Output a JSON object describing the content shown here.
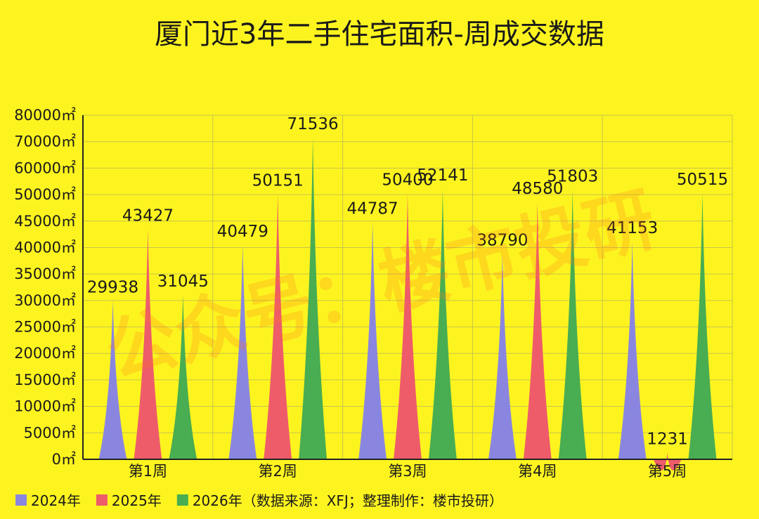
{
  "chart_data": {
    "type": "area",
    "title": "厦门近3年二手住宅面积-周成交数据",
    "unit": "㎡",
    "categories": [
      "第1周",
      "第2周",
      "第3周",
      "第4周",
      "第5周"
    ],
    "series": [
      {
        "name": "2024年",
        "color": "#8a86e0",
        "values": [
          29938,
          40479,
          44787,
          38790,
          41153
        ]
      },
      {
        "name": "2025年",
        "color": "#ee5c6a",
        "values": [
          43427,
          50151,
          50400,
          48580,
          1231
        ]
      },
      {
        "name": "2026年",
        "color": "#49ad52",
        "values": [
          31045,
          71536,
          52141,
          51803,
          50515
        ]
      }
    ],
    "y_ticks": [
      0,
      5000,
      10000,
      15000,
      20000,
      25000,
      30000,
      35000,
      40000,
      45000,
      50000,
      60000,
      70000,
      80000
    ],
    "ylim": [
      0,
      80000
    ],
    "grid": true,
    "legend_position": "bottom-left",
    "legend_suffix": "（数据来源：XFJ；整理制作：楼市投研）",
    "watermark": "公众号：楼市投研"
  }
}
